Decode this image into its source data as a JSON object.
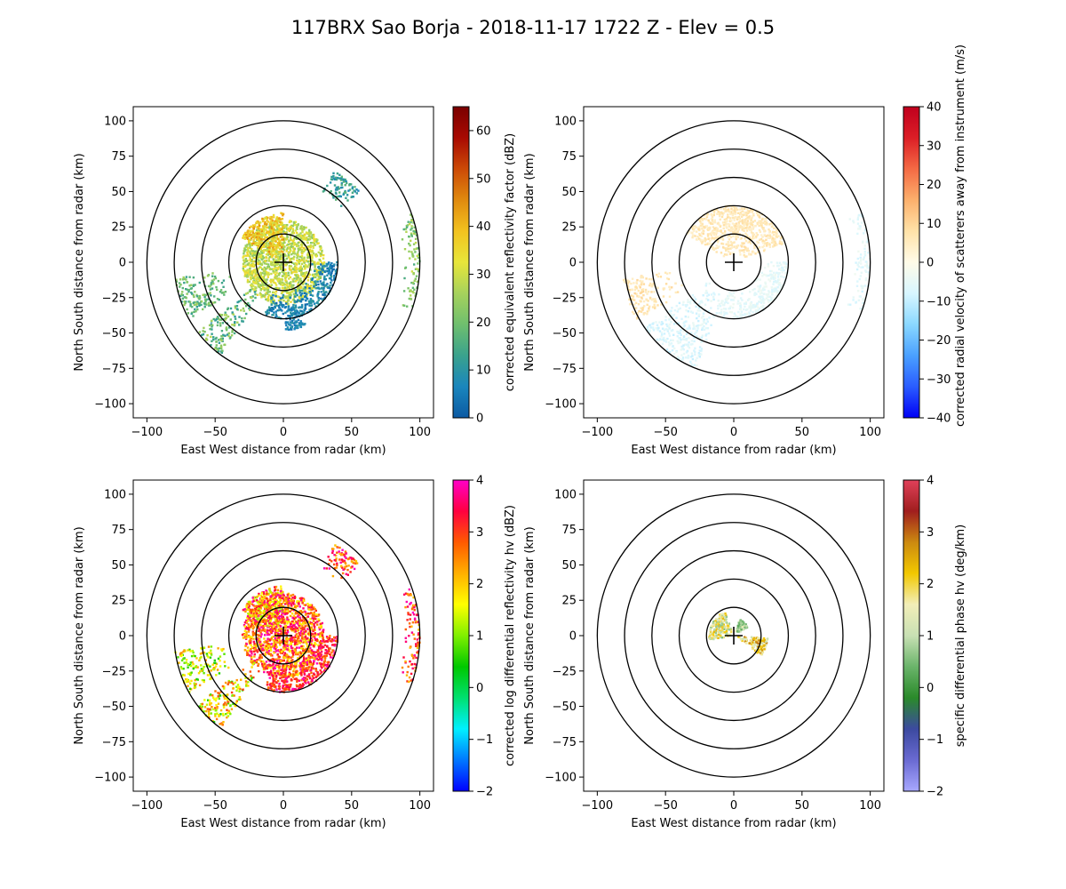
{
  "figure_title": "117BRX Sao Borja - 2018-11-17 1722 Z -  Elev = 0.5",
  "chart_data": [
    {
      "type": "heatmap",
      "id": "reflectivity",
      "xlabel": "East West distance from radar (km)",
      "ylabel": "North South distance from radar (km)",
      "xlim": [
        -110,
        110
      ],
      "ylim": [
        -110,
        110
      ],
      "xticks": [
        "−100",
        "−50",
        "0",
        "50",
        "100"
      ],
      "yticks": [
        "100",
        "75",
        "50",
        "25",
        "0",
        "−25",
        "−50",
        "−75",
        "−100"
      ],
      "range_rings_km": [
        20,
        40,
        60,
        80,
        100
      ],
      "colorbar": {
        "label": "corrected equivalent reflectivity factor (dBZ)",
        "range": [
          0,
          65
        ],
        "ticks": [
          "0",
          "10",
          "20",
          "30",
          "40",
          "50",
          "60"
        ],
        "colors": [
          "#0c5aa3",
          "#1a86bd",
          "#3aa28d",
          "#6fbf6e",
          "#a6d25c",
          "#e8e63a",
          "#f2c21f",
          "#e08a0e",
          "#cc4a06",
          "#a80a02",
          "#7a0000"
        ]
      },
      "echoes": [
        {
          "az": [
            0,
            360
          ],
          "r": [
            0,
            30
          ],
          "v": [
            22,
            36
          ]
        },
        {
          "az": [
            300,
            360
          ],
          "r": [
            5,
            35
          ],
          "v": [
            30,
            45
          ]
        },
        {
          "az": [
            90,
            200
          ],
          "r": [
            20,
            40
          ],
          "v": [
            2,
            12
          ]
        },
        {
          "az": [
            215,
            232
          ],
          "r": [
            25,
            80
          ],
          "v": [
            10,
            28
          ]
        },
        {
          "az": [
            240,
            262
          ],
          "r": [
            40,
            80
          ],
          "v": [
            12,
            26
          ]
        },
        {
          "az": [
            30,
            48
          ],
          "r": [
            55,
            75
          ],
          "v": [
            6,
            18
          ]
        },
        {
          "az": [
            70,
            110
          ],
          "r": [
            88,
            100
          ],
          "v": [
            15,
            30
          ]
        },
        {
          "az": [
            160,
            178
          ],
          "r": [
            30,
            48
          ],
          "v": [
            2,
            10
          ]
        }
      ]
    },
    {
      "type": "heatmap",
      "id": "velocity",
      "xlabel": "East West distance from radar (km)",
      "ylabel": "North South distance from radar (km)",
      "xlim": [
        -110,
        110
      ],
      "ylim": [
        -110,
        110
      ],
      "xticks": [
        "−100",
        "−50",
        "0",
        "50",
        "100"
      ],
      "yticks": [
        "100",
        "75",
        "50",
        "25",
        "0",
        "−25",
        "−50",
        "−75",
        "−100"
      ],
      "range_rings_km": [
        20,
        40,
        60,
        80,
        100
      ],
      "colorbar": {
        "label": "corrected radial velocity of scatterers away from instrument (m/s)",
        "range": [
          -40,
          40
        ],
        "ticks": [
          "−40",
          "−30",
          "−20",
          "−10",
          "0",
          "10",
          "20",
          "30",
          "40"
        ],
        "colors": [
          "#0000f5",
          "#2a5cff",
          "#4aa0ff",
          "#8ad8ff",
          "#d8f6ff",
          "#fffbe8",
          "#ffe2a8",
          "#fcb06c",
          "#f46a44",
          "#dc1e26",
          "#c0001e"
        ]
      },
      "echoes": [
        {
          "az": [
            300,
            360
          ],
          "r": [
            5,
            40
          ],
          "v": [
            3,
            9
          ]
        },
        {
          "az": [
            0,
            70
          ],
          "r": [
            5,
            40
          ],
          "v": [
            3,
            9
          ]
        },
        {
          "az": [
            90,
            200
          ],
          "r": [
            20,
            40
          ],
          "v": [
            -8,
            -3
          ]
        },
        {
          "az": [
            200,
            235
          ],
          "r": [
            20,
            80
          ],
          "v": [
            -10,
            -4
          ]
        },
        {
          "az": [
            240,
            262
          ],
          "r": [
            40,
            82
          ],
          "v": [
            4,
            10
          ]
        },
        {
          "az": [
            70,
            110
          ],
          "r": [
            88,
            100
          ],
          "v": [
            -9,
            -3
          ]
        }
      ]
    },
    {
      "type": "heatmap",
      "id": "zdr",
      "xlabel": "East West distance from radar (km)",
      "ylabel": "North South distance from radar (km)",
      "xlim": [
        -110,
        110
      ],
      "ylim": [
        -110,
        110
      ],
      "xticks": [
        "−100",
        "−50",
        "0",
        "50",
        "100"
      ],
      "yticks": [
        "100",
        "75",
        "50",
        "25",
        "0",
        "−25",
        "−50",
        "−75",
        "−100"
      ],
      "range_rings_km": [
        20,
        40,
        60,
        80,
        100
      ],
      "colorbar": {
        "label": "corrected log differential reflectivity hv (dBZ)",
        "range": [
          -2,
          4
        ],
        "ticks": [
          "−2",
          "−1",
          "0",
          "1",
          "2",
          "3",
          "4"
        ],
        "colors": [
          "#0000ff",
          "#0078ff",
          "#00f0ff",
          "#00e070",
          "#00c800",
          "#80f000",
          "#ffff00",
          "#ffb000",
          "#ff5a00",
          "#ff0040",
          "#ff00c8"
        ]
      },
      "echoes": [
        {
          "az": [
            0,
            360
          ],
          "r": [
            0,
            30
          ],
          "v": [
            1.5,
            4
          ]
        },
        {
          "az": [
            300,
            360
          ],
          "r": [
            5,
            35
          ],
          "v": [
            1,
            4
          ]
        },
        {
          "az": [
            90,
            200
          ],
          "r": [
            20,
            40
          ],
          "v": [
            2.5,
            4
          ]
        },
        {
          "az": [
            215,
            232
          ],
          "r": [
            25,
            80
          ],
          "v": [
            0.5,
            3
          ]
        },
        {
          "az": [
            240,
            262
          ],
          "r": [
            40,
            80
          ],
          "v": [
            0.5,
            2.5
          ]
        },
        {
          "az": [
            30,
            48
          ],
          "r": [
            55,
            75
          ],
          "v": [
            2,
            4
          ]
        },
        {
          "az": [
            70,
            110
          ],
          "r": [
            88,
            100
          ],
          "v": [
            2,
            4
          ]
        }
      ]
    },
    {
      "type": "heatmap",
      "id": "kdp",
      "xlabel": "East West distance from radar (km)",
      "ylabel": "North South distance from radar (km)",
      "xlim": [
        -110,
        110
      ],
      "ylim": [
        -110,
        110
      ],
      "xticks": [
        "−100",
        "−50",
        "0",
        "50",
        "100"
      ],
      "yticks": [
        "100",
        "75",
        "50",
        "25",
        "0",
        "−25",
        "−50",
        "−75",
        "−100"
      ],
      "range_rings_km": [
        20,
        40,
        60,
        80,
        100
      ],
      "colorbar": {
        "label": "specific differential phase hv (deg/km)",
        "range": [
          -2,
          4
        ],
        "ticks": [
          "−2",
          "−1",
          "0",
          "1",
          "2",
          "3",
          "4"
        ],
        "colors": [
          "#a8a8ff",
          "#6a6ad2",
          "#3c4aa0",
          "#2a8a2a",
          "#6ab46a",
          "#c8e0b4",
          "#f2eeb8",
          "#f2c800",
          "#cc8a10",
          "#a01e1e",
          "#e0405a"
        ]
      },
      "echoes": [
        {
          "az": [
            260,
            340
          ],
          "r": [
            2,
            18
          ],
          "v": [
            0.5,
            2.5
          ]
        },
        {
          "az": [
            20,
            60
          ],
          "r": [
            2,
            12
          ],
          "v": [
            0,
            1.5
          ]
        },
        {
          "az": [
            95,
            125
          ],
          "r": [
            3,
            25
          ],
          "v": [
            1,
            3
          ]
        }
      ]
    }
  ]
}
